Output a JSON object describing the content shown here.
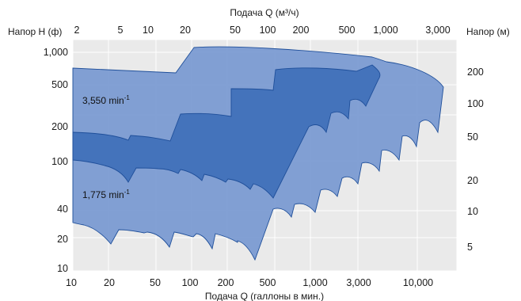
{
  "chart_data": {
    "type": "area",
    "title": "",
    "top_axis": {
      "label": "Подача Q (м³/ч)",
      "ticks": [
        "2",
        "5",
        "10",
        "20",
        "50",
        "100",
        "200",
        "500",
        "1,000",
        "3,000"
      ]
    },
    "bottom_axis": {
      "label": "Подача Q (галлоны в мин.)",
      "ticks": [
        "10",
        "20",
        "50",
        "100",
        "200",
        "500",
        "1,000",
        "3,000",
        "10,000"
      ]
    },
    "left_axis": {
      "label": "Напор H (ф)",
      "ticks": [
        "1,000",
        "500",
        "200",
        "100",
        "40",
        "20",
        "10"
      ]
    },
    "right_axis": {
      "label": "Напор (м)",
      "ticks": [
        "200",
        "100",
        "50",
        "20",
        "10",
        "5"
      ]
    },
    "xscale": "log",
    "yscale": "log",
    "xlim": [
      10,
      20000
    ],
    "ylim": [
      10,
      1250
    ],
    "grid": true,
    "series": [
      {
        "name": "3,550 min⁻¹",
        "color": "#3f6fb8",
        "regions": [
          {
            "flow_gpm": [
              10,
              58,
              65,
              100,
              100,
              250,
              250,
              400,
              700,
              1200,
              1200,
              3000,
              3000,
              6000,
              6000,
              9000
            ],
            "head_max_ft": [
              160,
              150,
              160,
              170,
              180,
              200,
              245,
              270,
              300,
              320,
              450,
              510,
              600,
              650,
              720,
              750
            ]
          },
          {
            "flow_gpm": [
              10,
              70,
              85,
              200,
              400,
              700,
              1500,
              3000,
              6000,
              10000,
              14000
            ],
            "head_min_ft": [
              100,
              95,
              75,
              85,
              70,
              55,
              60,
              48,
              45,
              65,
              90
            ]
          }
        ]
      },
      {
        "name": "1,775 min⁻¹",
        "color": "#7b9bd2",
        "regions": [
          {
            "flow_gpm": [
              10,
              100,
              120,
              600,
              3000,
              17000
            ],
            "head_max_ft": [
              650,
              700,
              1000,
              950,
              780,
              300
            ]
          },
          {
            "flow_gpm": [
              10,
              60,
              300,
              700,
              2000,
              7000,
              13000
            ],
            "head_min_ft": [
              29,
              18,
              13,
              22,
              28,
              35,
              75
            ]
          }
        ]
      }
    ]
  },
  "labels": {
    "high_speed_value": "3,550 min",
    "high_speed_exp": "-1",
    "low_speed_value": "1,775 min",
    "low_speed_exp": "-1"
  },
  "colors": {
    "plot_background": "#eaeaea",
    "grid": "#ffffff",
    "light_band": "#7b9bd2",
    "dark_band": "#3f6fb8",
    "outline": "#1f4f9a"
  }
}
